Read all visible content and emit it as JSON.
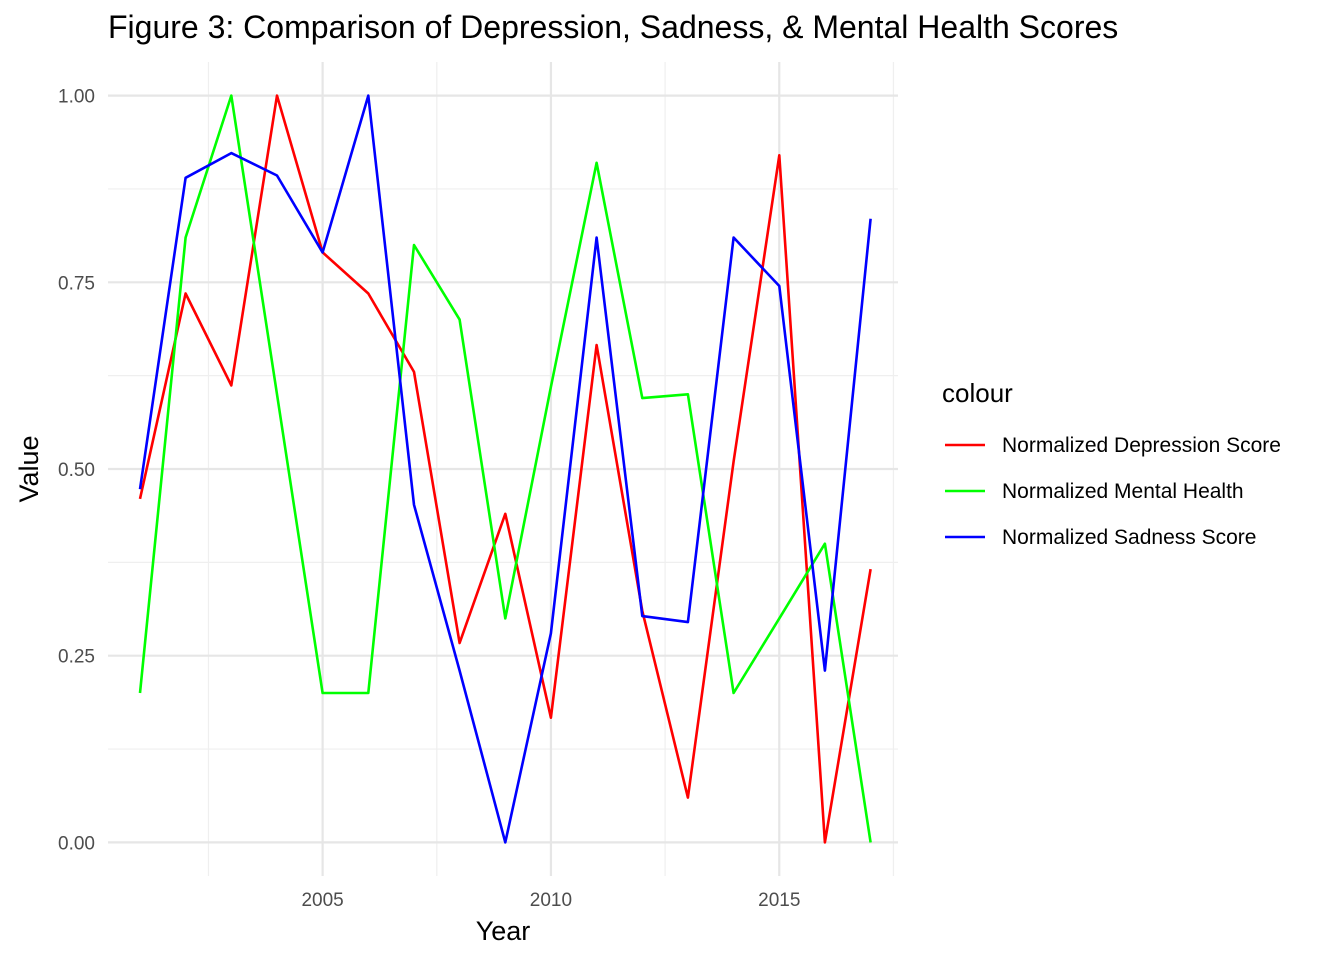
{
  "chart_data": {
    "type": "line",
    "title": "Figure 3: Comparison of Depression, Sadness, & Mental Health Scores",
    "xlabel": "Year",
    "ylabel": "Value",
    "xlim": [
      2000.3,
      2017.6
    ],
    "ylim": [
      -0.045,
      1.045
    ],
    "x_ticks": [
      2005,
      2010,
      2015
    ],
    "y_ticks": [
      0.0,
      0.25,
      0.5,
      0.75,
      1.0
    ],
    "x_tick_labels": [
      "2005",
      "2010",
      "2015"
    ],
    "y_tick_labels": [
      "0.00",
      "0.25",
      "0.50",
      "0.75",
      "1.00"
    ],
    "grid": true,
    "legend": {
      "title": "colour",
      "position": "right"
    },
    "x": [
      2001,
      2002,
      2003,
      2004,
      2005,
      2006,
      2007,
      2008,
      2009,
      2010,
      2011,
      2012,
      2013,
      2014,
      2015,
      2016,
      2017
    ],
    "series": [
      {
        "name": "Normalized Depression Score",
        "color": "#ff0000",
        "values": [
          0.46,
          0.735,
          0.612,
          1.0,
          0.79,
          0.735,
          0.63,
          0.267,
          0.44,
          0.167,
          0.666,
          0.31,
          0.06,
          0.51,
          0.92,
          0.0,
          0.366
        ]
      },
      {
        "name": "Normalized Mental Health",
        "color": "#00ff00",
        "values": [
          0.2,
          0.81,
          1.0,
          0.6,
          0.2,
          0.2,
          0.8,
          0.7,
          0.3,
          0.61,
          0.91,
          0.595,
          0.6,
          0.2,
          0.3,
          0.4,
          0.0
        ]
      },
      {
        "name": "Normalized Sadness Score",
        "color": "#0000ff",
        "values": [
          0.473,
          0.89,
          0.923,
          0.893,
          0.79,
          1.0,
          0.452,
          0.23,
          0.0,
          0.28,
          0.81,
          0.303,
          0.295,
          0.81,
          0.745,
          0.23,
          0.835
        ]
      }
    ]
  }
}
